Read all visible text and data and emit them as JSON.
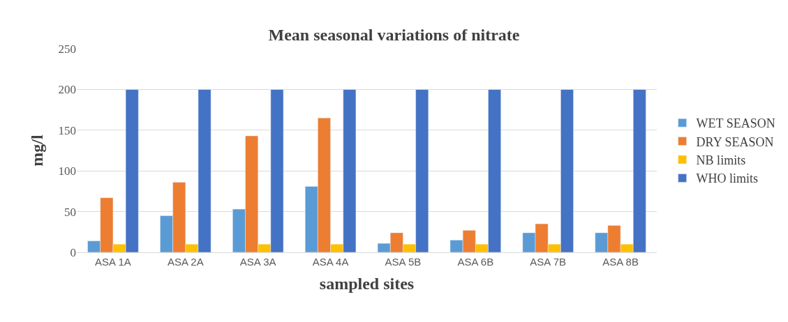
{
  "chart_data": {
    "type": "bar",
    "title": "Mean seasonal variations of nitrate",
    "xlabel": "sampled sites",
    "ylabel": "mg/l",
    "categories": [
      "ASA 1A",
      "ASA 2A",
      "ASA 3A",
      "ASA 4A",
      "ASA 5B",
      "ASA 6B",
      "ASA 7B",
      "ASA 8B"
    ],
    "series": [
      {
        "name": "WET SEASON",
        "color": "#5b9bd5",
        "values": [
          14,
          45,
          53,
          81,
          11,
          15,
          24,
          24
        ]
      },
      {
        "name": "DRY SEASON",
        "color": "#ed7d31",
        "values": [
          67,
          86,
          143,
          165,
          24,
          27,
          35,
          33
        ]
      },
      {
        "name": "NB limits",
        "color": "#ffc000",
        "values": [
          10,
          10,
          10,
          10,
          10,
          10,
          10,
          10
        ]
      },
      {
        "name": "WHO limits",
        "color": "#4472c4",
        "values": [
          200,
          200,
          200,
          200,
          200,
          200,
          200,
          200
        ]
      }
    ],
    "ylim": [
      0,
      250
    ],
    "yticks": [
      0,
      50,
      100,
      150,
      200,
      250
    ],
    "grid": "y",
    "legend": "right"
  }
}
